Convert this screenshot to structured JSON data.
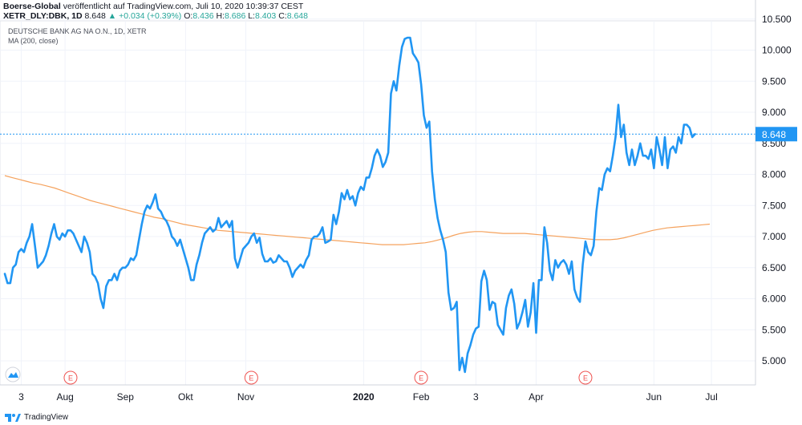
{
  "header": {
    "publisher": "Boerse-Global",
    "published_text": "veröffentlicht auf TradingView.com, Juli 10, 2020 10:39:37 CEST",
    "symbol": "XETR_DLY:DBK, 1D",
    "last": "8.648",
    "change": "+0.034 (+0.39%)",
    "o_label": "O:",
    "o": "8.436",
    "h_label": "H:",
    "h": "8.686",
    "l_label": "L:",
    "l": "8.403",
    "c_label": "C:",
    "c": "8.648"
  },
  "legend": {
    "instrument": "DEUTSCHE BANK AG NA O.N., 1D, XETR",
    "indicator": "MA (200, close)"
  },
  "footer": {
    "brand": "TradingView"
  },
  "colors": {
    "price": "#2196f3",
    "ma": "#f5a25d",
    "last_line": "#2196f3",
    "grid": "#f0f3fa",
    "axis_text": "#131722",
    "event": "#ef5350"
  },
  "chart_data": {
    "type": "line",
    "title": "DEUTSCHE BANK AG NA O.N., 1D, XETR",
    "xlabel": "",
    "ylabel": "",
    "ylim": [
      4.6,
      10.5
    ],
    "y_ticks": [
      "10.500",
      "10.000",
      "9.500",
      "9.000",
      "8.500",
      "8.000",
      "7.500",
      "7.000",
      "6.500",
      "6.000",
      "5.500",
      "5.000"
    ],
    "x_ticks": [
      "3",
      "Aug",
      "Sep",
      "Okt",
      "Nov",
      "2020",
      "Feb",
      "3",
      "Apr",
      "Jun",
      "Jul"
    ],
    "x_tick_index": [
      6,
      22,
      44,
      66,
      88,
      131,
      152,
      172,
      194,
      237,
      258
    ],
    "last_price_label": "8.648",
    "last_price": 8.648,
    "events": [
      {
        "label": "E",
        "index": 24
      },
      {
        "label": "E",
        "index": 90
      },
      {
        "label": "E",
        "index": 152
      },
      {
        "label": "E",
        "index": 212
      }
    ],
    "grid": true,
    "legend_position": "top-left",
    "series": [
      {
        "name": "DEUTSCHE BANK AG NA O.N., 1D, XETR",
        "values": [
          6.4,
          6.25,
          6.25,
          6.5,
          6.55,
          6.75,
          6.8,
          6.75,
          6.9,
          7.0,
          7.2,
          6.85,
          6.5,
          6.55,
          6.6,
          6.7,
          6.85,
          7.05,
          7.2,
          7.0,
          6.95,
          7.05,
          7.0,
          7.1,
          7.1,
          7.05,
          6.95,
          6.85,
          6.75,
          7.0,
          6.9,
          6.75,
          6.4,
          6.35,
          6.25,
          6.0,
          5.85,
          6.2,
          6.3,
          6.3,
          6.4,
          6.3,
          6.45,
          6.5,
          6.5,
          6.55,
          6.65,
          6.62,
          6.7,
          6.95,
          7.2,
          7.4,
          7.5,
          7.45,
          7.55,
          7.68,
          7.45,
          7.4,
          7.3,
          7.25,
          7.15,
          7.0,
          6.95,
          6.85,
          6.95,
          6.8,
          6.65,
          6.5,
          6.3,
          6.3,
          6.55,
          6.7,
          6.9,
          7.05,
          7.1,
          7.15,
          7.08,
          7.12,
          7.3,
          7.15,
          7.2,
          7.25,
          7.15,
          7.25,
          6.65,
          6.5,
          6.65,
          6.8,
          6.85,
          6.9,
          7.0,
          7.05,
          6.9,
          6.98,
          6.72,
          6.6,
          6.6,
          6.65,
          6.58,
          6.6,
          6.7,
          6.65,
          6.6,
          6.6,
          6.5,
          6.35,
          6.45,
          6.5,
          6.55,
          6.5,
          6.62,
          6.7,
          6.95,
          7.0,
          7.0,
          7.05,
          7.15,
          6.9,
          6.92,
          6.95,
          7.35,
          7.2,
          7.4,
          7.7,
          7.6,
          7.75,
          7.6,
          7.65,
          7.5,
          7.7,
          7.8,
          7.75,
          7.95,
          7.95,
          8.1,
          8.3,
          8.4,
          8.3,
          8.12,
          8.2,
          8.35,
          9.3,
          9.5,
          9.35,
          9.75,
          10.05,
          10.18,
          10.2,
          10.2,
          9.95,
          9.88,
          9.8,
          9.45,
          8.95,
          8.75,
          8.85,
          8.05,
          7.6,
          7.3,
          7.1,
          6.95,
          6.75,
          6.1,
          5.82,
          5.85,
          5.95,
          4.85,
          5.05,
          4.82,
          5.12,
          5.25,
          5.42,
          5.52,
          5.55,
          6.28,
          6.45,
          6.3,
          5.82,
          5.95,
          5.92,
          5.58,
          5.5,
          5.42,
          5.85,
          6.05,
          6.15,
          5.92,
          5.52,
          5.62,
          5.78,
          5.98,
          5.55,
          5.78,
          6.25,
          5.45,
          6.3,
          6.3,
          7.15,
          6.9,
          6.45,
          6.3,
          6.62,
          6.5,
          6.58,
          6.62,
          6.55,
          6.4,
          6.6,
          6.15,
          6.02,
          5.95,
          6.55,
          6.92,
          6.75,
          6.7,
          6.85,
          7.4,
          7.78,
          7.75,
          8.0,
          8.1,
          8.05,
          8.3,
          8.6,
          9.12,
          8.6,
          8.8,
          8.35,
          8.15,
          8.4,
          8.15,
          8.3,
          8.5,
          8.3,
          8.3,
          8.25,
          8.4,
          8.1,
          8.6,
          8.4,
          8.15,
          8.6,
          8.1,
          8.4,
          8.45,
          8.35,
          8.6,
          8.5,
          8.8,
          8.8,
          8.75,
          8.6,
          8.648
        ]
      },
      {
        "name": "MA (200, close)",
        "values": [
          7.98,
          7.95,
          7.92,
          7.89,
          7.86,
          7.84,
          7.81,
          7.78,
          7.74,
          7.7,
          7.66,
          7.62,
          7.58,
          7.55,
          7.52,
          7.49,
          7.46,
          7.43,
          7.4,
          7.37,
          7.34,
          7.31,
          7.29,
          7.26,
          7.23,
          7.2,
          7.18,
          7.16,
          7.14,
          7.12,
          7.1,
          7.09,
          7.08,
          7.07,
          7.06,
          7.05,
          7.04,
          7.03,
          7.02,
          7.01,
          7.0,
          6.99,
          6.98,
          6.97,
          6.96,
          6.95,
          6.94,
          6.93,
          6.92,
          6.91,
          6.9,
          6.89,
          6.88,
          6.87,
          6.87,
          6.87,
          6.87,
          6.88,
          6.89,
          6.9,
          6.92,
          6.95,
          6.98,
          7.02,
          7.05,
          7.07,
          7.08,
          7.08,
          7.07,
          7.06,
          7.05,
          7.05,
          7.05,
          7.05,
          7.04,
          7.03,
          7.02,
          7.01,
          7.0,
          6.99,
          6.98,
          6.97,
          6.96,
          6.95,
          6.95,
          6.95,
          6.96,
          6.98,
          7.01,
          7.04,
          7.07,
          7.1,
          7.12,
          7.14,
          7.15,
          7.16,
          7.17,
          7.18,
          7.19,
          7.2
        ]
      }
    ],
    "ma_start_index": 0,
    "ma_step": 2.6
  }
}
